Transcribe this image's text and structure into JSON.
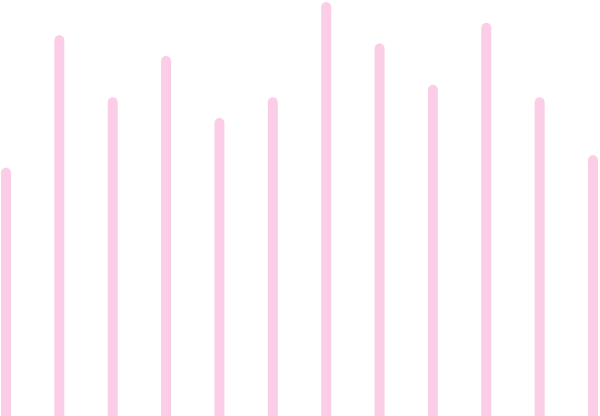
{
  "chart_data": {
    "type": "bar",
    "values": [
      60,
      92,
      77,
      87,
      72,
      77,
      100,
      90,
      80,
      95,
      77,
      63
    ],
    "color": "#fccde6",
    "ylim": [
      0,
      100
    ]
  }
}
